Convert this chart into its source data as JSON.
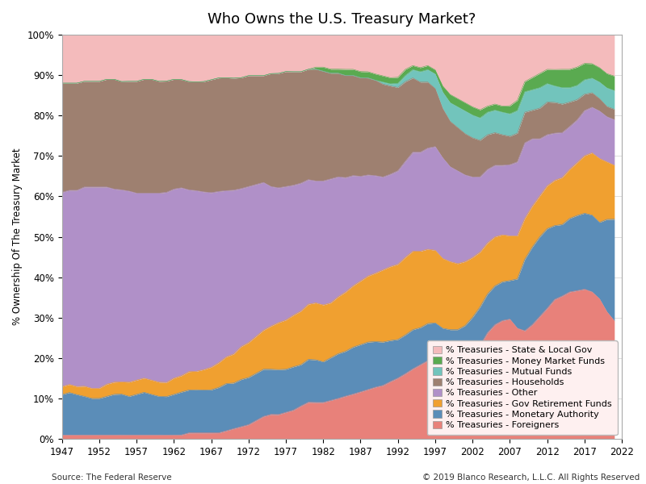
{
  "title": "Who Owns the U.S. Treasury Market?",
  "ylabel": "% Ownership Of The Treasury Market",
  "source_left": "Source: The Federal Reserve",
  "source_right": "© 2019 Blanco Research, L.L.C. All Rights Reserved",
  "years": [
    1947,
    1948,
    1949,
    1950,
    1951,
    1952,
    1953,
    1954,
    1955,
    1956,
    1957,
    1958,
    1959,
    1960,
    1961,
    1962,
    1963,
    1964,
    1965,
    1966,
    1967,
    1968,
    1969,
    1970,
    1971,
    1972,
    1973,
    1974,
    1975,
    1976,
    1977,
    1978,
    1979,
    1980,
    1981,
    1982,
    1983,
    1984,
    1985,
    1986,
    1987,
    1988,
    1989,
    1990,
    1991,
    1992,
    1993,
    1994,
    1995,
    1996,
    1997,
    1998,
    1999,
    2000,
    2001,
    2002,
    2003,
    2004,
    2005,
    2006,
    2007,
    2008,
    2009,
    2010,
    2011,
    2012,
    2013,
    2014,
    2015,
    2016,
    2017,
    2018,
    2019,
    2020,
    2021
  ],
  "series": {
    "Foreigners": [
      1.0,
      1.0,
      1.0,
      1.0,
      1.0,
      1.0,
      1.0,
      1.0,
      1.0,
      1.0,
      1.0,
      1.0,
      1.0,
      1.0,
      1.0,
      1.0,
      1.0,
      1.5,
      1.5,
      1.5,
      1.5,
      1.5,
      2.0,
      2.5,
      3.0,
      3.5,
      4.5,
      5.5,
      6.0,
      6.0,
      6.5,
      7.0,
      8.0,
      9.0,
      9.0,
      9.0,
      9.5,
      10.0,
      10.5,
      11.0,
      11.5,
      12.0,
      12.5,
      13.0,
      14.0,
      15.0,
      16.0,
      17.0,
      18.0,
      19.0,
      19.5,
      18.5,
      18.0,
      18.0,
      18.5,
      20.0,
      23.0,
      26.0,
      28.0,
      29.0,
      29.5,
      27.0,
      26.5,
      28.0,
      30.0,
      32.0,
      34.0,
      35.0,
      36.0,
      36.5,
      36.5,
      35.5,
      34.0,
      31.0,
      28.5
    ],
    "Monetary Authority": [
      10.0,
      10.5,
      10.0,
      9.5,
      9.0,
      9.0,
      9.5,
      10.0,
      10.0,
      9.5,
      10.0,
      10.5,
      10.0,
      9.5,
      9.5,
      10.0,
      10.5,
      10.5,
      10.5,
      10.5,
      10.5,
      11.0,
      11.5,
      11.0,
      11.5,
      11.5,
      11.5,
      11.5,
      11.0,
      11.0,
      10.5,
      10.5,
      10.0,
      10.5,
      10.5,
      10.0,
      10.5,
      11.0,
      11.0,
      11.5,
      11.5,
      11.5,
      11.0,
      10.5,
      10.0,
      9.5,
      9.5,
      9.5,
      9.0,
      9.0,
      8.5,
      8.5,
      8.5,
      8.5,
      9.0,
      9.5,
      9.5,
      9.5,
      9.5,
      9.5,
      9.5,
      12.0,
      17.5,
      19.0,
      19.5,
      19.5,
      18.0,
      17.5,
      18.0,
      18.5,
      18.5,
      18.5,
      18.5,
      22.5,
      24.5
    ],
    "Gov Retirement Funds": [
      2.0,
      2.0,
      2.0,
      2.5,
      2.5,
      2.5,
      3.0,
      3.0,
      3.0,
      3.5,
      3.5,
      3.5,
      3.5,
      3.5,
      3.5,
      4.0,
      4.0,
      4.5,
      4.5,
      5.0,
      5.5,
      6.0,
      6.5,
      7.0,
      8.0,
      8.5,
      9.0,
      9.5,
      10.5,
      11.5,
      12.0,
      12.5,
      13.0,
      13.5,
      14.0,
      14.0,
      13.5,
      14.0,
      14.5,
      15.0,
      15.5,
      16.0,
      16.5,
      17.5,
      18.0,
      18.5,
      19.0,
      19.0,
      18.5,
      18.0,
      17.5,
      17.0,
      16.5,
      16.0,
      15.5,
      14.5,
      13.5,
      12.5,
      12.0,
      11.5,
      11.0,
      10.5,
      10.0,
      10.0,
      10.0,
      10.5,
      11.0,
      11.5,
      12.0,
      13.0,
      14.0,
      15.0,
      15.5,
      14.0,
      13.0
    ],
    "Other": [
      48.0,
      48.0,
      48.5,
      49.0,
      49.5,
      49.5,
      48.5,
      47.5,
      47.0,
      47.0,
      46.0,
      45.5,
      46.0,
      46.5,
      47.0,
      46.5,
      46.0,
      44.5,
      44.0,
      43.5,
      42.5,
      41.5,
      40.5,
      39.5,
      38.5,
      38.0,
      37.0,
      36.0,
      34.0,
      33.0,
      32.5,
      31.5,
      31.0,
      30.5,
      30.0,
      30.5,
      30.5,
      29.5,
      28.0,
      27.0,
      25.5,
      24.5,
      23.5,
      22.5,
      22.5,
      23.0,
      23.5,
      24.0,
      24.0,
      24.5,
      25.0,
      24.5,
      23.0,
      22.5,
      21.0,
      19.5,
      18.5,
      18.0,
      17.5,
      17.0,
      17.5,
      18.0,
      18.5,
      16.5,
      14.0,
      12.5,
      11.5,
      11.0,
      10.5,
      10.5,
      11.0,
      11.0,
      11.5,
      11.0,
      11.0
    ],
    "Households": [
      27.0,
      26.5,
      26.5,
      26.0,
      26.0,
      26.0,
      26.5,
      27.0,
      26.5,
      27.0,
      27.5,
      28.0,
      28.0,
      27.5,
      27.5,
      27.0,
      26.5,
      26.5,
      26.5,
      27.0,
      27.5,
      27.5,
      27.5,
      27.0,
      27.0,
      27.0,
      26.5,
      26.0,
      27.5,
      28.0,
      28.0,
      27.5,
      27.0,
      27.0,
      27.5,
      27.0,
      26.0,
      25.5,
      25.0,
      24.5,
      24.0,
      23.5,
      23.0,
      22.5,
      21.5,
      20.5,
      19.5,
      18.0,
      17.0,
      16.0,
      14.0,
      12.0,
      11.0,
      10.5,
      10.0,
      9.5,
      9.0,
      8.5,
      8.0,
      7.5,
      7.0,
      7.0,
      7.5,
      7.0,
      7.5,
      8.0,
      7.5,
      7.0,
      6.0,
      5.0,
      4.0,
      3.5,
      3.0,
      2.5,
      2.5
    ],
    "Mutual Funds": [
      0.0,
      0.0,
      0.0,
      0.0,
      0.0,
      0.0,
      0.0,
      0.0,
      0.0,
      0.0,
      0.0,
      0.0,
      0.0,
      0.0,
      0.0,
      0.0,
      0.0,
      0.0,
      0.0,
      0.0,
      0.0,
      0.0,
      0.0,
      0.0,
      0.0,
      0.0,
      0.0,
      0.0,
      0.0,
      0.0,
      0.0,
      0.0,
      0.0,
      0.0,
      0.0,
      0.0,
      0.0,
      0.0,
      0.0,
      0.0,
      0.0,
      0.0,
      0.0,
      0.5,
      0.5,
      1.0,
      1.5,
      2.0,
      2.5,
      3.0,
      3.5,
      4.0,
      4.5,
      5.0,
      5.5,
      5.5,
      5.5,
      5.5,
      5.5,
      5.5,
      5.5,
      5.5,
      5.0,
      5.0,
      5.0,
      4.5,
      4.0,
      4.0,
      3.5,
      3.5,
      3.5,
      3.5,
      4.0,
      4.5,
      4.5
    ],
    "Money Market Funds": [
      0.0,
      0.0,
      0.0,
      0.0,
      0.0,
      0.0,
      0.0,
      0.0,
      0.0,
      0.0,
      0.0,
      0.0,
      0.0,
      0.0,
      0.0,
      0.0,
      0.0,
      0.0,
      0.0,
      0.0,
      0.0,
      0.0,
      0.0,
      0.0,
      0.0,
      0.0,
      0.0,
      0.0,
      0.0,
      0.0,
      0.0,
      0.0,
      0.0,
      0.0,
      0.5,
      1.0,
      1.0,
      1.0,
      1.5,
      1.5,
      1.5,
      1.5,
      1.5,
      1.5,
      1.5,
      1.5,
      1.5,
      1.0,
      1.0,
      1.0,
      1.0,
      1.5,
      2.0,
      2.0,
      2.0,
      2.0,
      2.0,
      1.5,
      1.5,
      1.5,
      2.0,
      2.5,
      2.5,
      3.0,
      3.5,
      3.5,
      4.0,
      4.5,
      4.5,
      4.5,
      4.0,
      3.5,
      3.5,
      3.5,
      3.5
    ],
    "State & Local Gov": [
      12.0,
      12.0,
      12.0,
      11.5,
      11.5,
      11.5,
      11.0,
      11.0,
      11.5,
      11.5,
      11.5,
      11.0,
      11.0,
      11.5,
      11.5,
      11.0,
      11.0,
      11.5,
      11.5,
      11.5,
      11.0,
      10.5,
      10.5,
      10.5,
      10.5,
      10.0,
      10.0,
      10.0,
      9.5,
      9.5,
      9.0,
      9.0,
      9.0,
      8.5,
      8.0,
      8.0,
      8.5,
      8.5,
      8.5,
      8.5,
      9.0,
      9.0,
      9.5,
      10.0,
      10.5,
      10.5,
      8.5,
      7.5,
      8.0,
      7.5,
      8.5,
      12.5,
      14.5,
      15.5,
      16.5,
      17.5,
      18.5,
      17.5,
      17.0,
      17.5,
      17.5,
      16.0,
      11.5,
      10.5,
      9.5,
      8.5,
      8.5,
      8.5,
      8.5,
      8.0,
      7.0,
      7.0,
      8.0,
      9.5,
      10.0
    ]
  },
  "colors": {
    "Foreigners": "#E8817A",
    "Monetary Authority": "#5B8DB8",
    "Gov Retirement Funds": "#F0A030",
    "Other": "#B090C8",
    "Households": "#9E8070",
    "Mutual Funds": "#72C4BC",
    "Money Market Funds": "#5AAA50",
    "State & Local Gov": "#F4BBBC"
  },
  "legend_order": [
    "State & Local Gov",
    "Money Market Funds",
    "Mutual Funds",
    "Households",
    "Other",
    "Gov Retirement Funds",
    "Monetary Authority",
    "Foreigners"
  ],
  "legend_labels": {
    "State & Local Gov": "% Treasuries - State & Local Gov",
    "Money Market Funds": "% Treasuries - Money Market Funds",
    "Mutual Funds": "% Treasuries - Mutual Funds",
    "Households": "% Treasuries - Households",
    "Other": "% Treasuries - Other",
    "Gov Retirement Funds": "% Treasuries - Gov Retirement Funds",
    "Monetary Authority": "% Treasuries - Monetary Authority",
    "Foreigners": "% Treasuries - Foreigners"
  },
  "stack_order": [
    "Foreigners",
    "Monetary Authority",
    "Gov Retirement Funds",
    "Other",
    "Households",
    "Mutual Funds",
    "Money Market Funds",
    "State & Local Gov"
  ],
  "ylim": [
    0,
    100
  ],
  "ytick_values": [
    0,
    10,
    20,
    30,
    40,
    50,
    60,
    70,
    80,
    90,
    100
  ],
  "ytick_labels": [
    "0%",
    "10%",
    "20%",
    "30%",
    "40%",
    "50%",
    "60%",
    "70%",
    "80%",
    "90%",
    "100%"
  ],
  "xtick_years": [
    1947,
    1952,
    1957,
    1962,
    1967,
    1972,
    1977,
    1982,
    1987,
    1992,
    1997,
    2002,
    2007,
    2012,
    2017,
    2022
  ],
  "xmin": 1947,
  "xmax": 2022,
  "background_color": "#FFFFFF",
  "legend_bg": "#FEF0F0",
  "title_fontsize": 13,
  "axis_label_fontsize": 8.5,
  "tick_fontsize": 8.5,
  "legend_fontsize": 8,
  "source_fontsize": 7.5
}
